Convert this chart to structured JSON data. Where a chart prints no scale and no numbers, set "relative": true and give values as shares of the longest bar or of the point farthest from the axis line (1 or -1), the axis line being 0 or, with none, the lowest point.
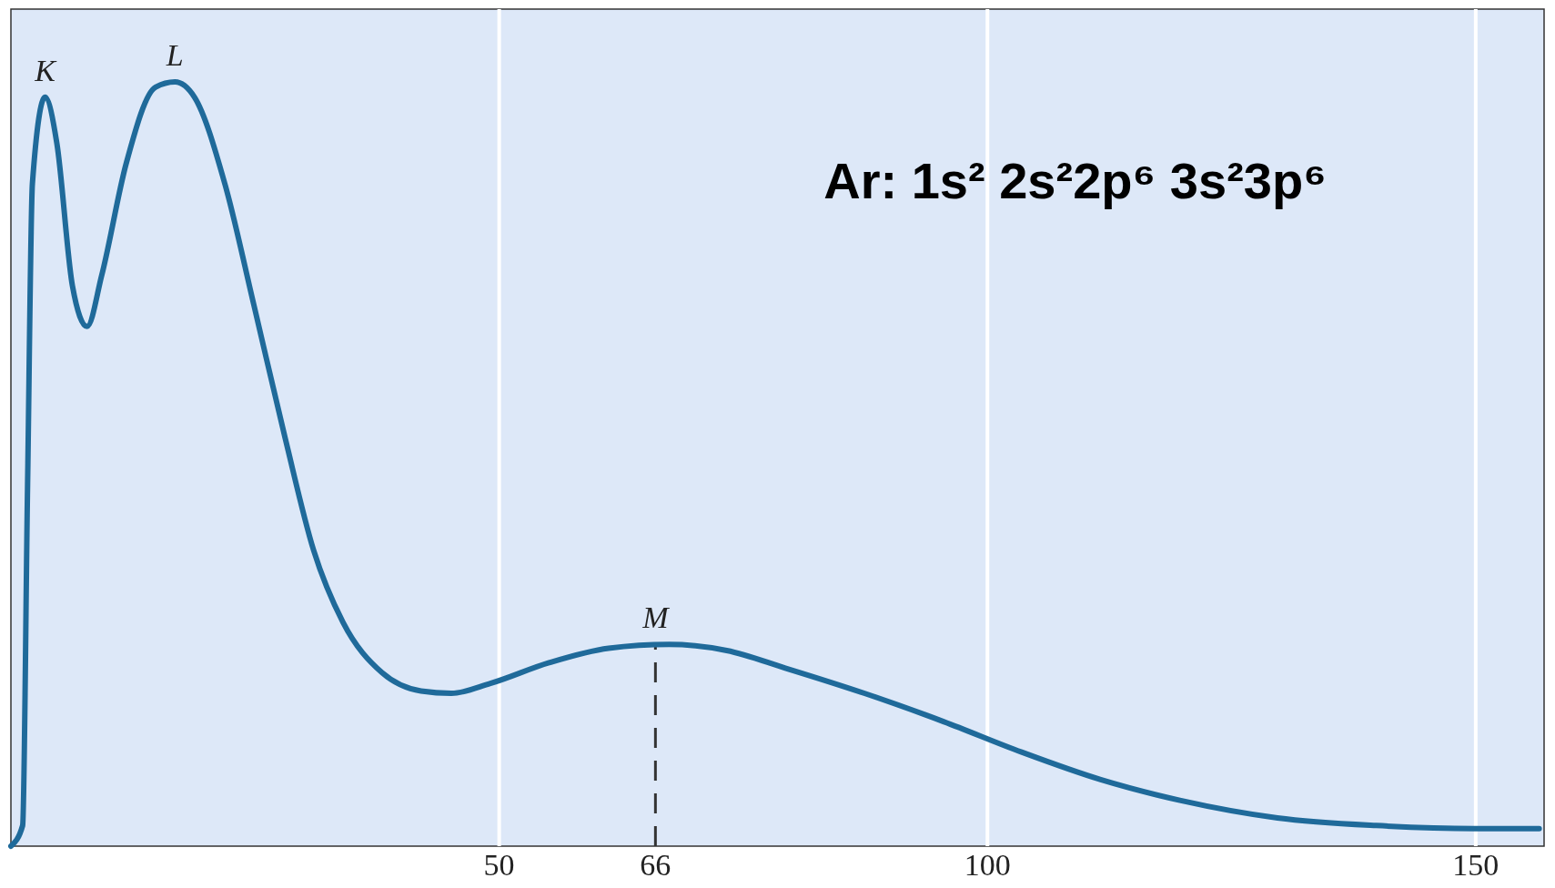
{
  "chart_data": {
    "type": "line",
    "relative": true,
    "x": [
      0,
      1.2,
      1.7,
      2.2,
      3.5,
      4.7,
      6.3,
      7.8,
      9.3,
      11.8,
      14.8,
      16.8,
      18.8,
      21.9,
      24.9,
      28.1,
      31.0,
      34.0,
      38.0,
      42.0,
      45.1,
      49.1,
      55.1,
      61.2,
      67.4,
      73.3,
      79.3,
      87.4,
      95.5,
      103.5,
      111.6,
      119.7,
      129.7,
      139.8,
      149.9,
      156.5
    ],
    "series": [
      {
        "color": "#1f6a9a",
        "values": [
          0,
          0.027,
          0.467,
          0.867,
          0.98,
          0.92,
          0.733,
          0.68,
          0.747,
          0.893,
          0.993,
          1.0,
          0.98,
          0.867,
          0.707,
          0.533,
          0.387,
          0.293,
          0.227,
          0.203,
          0.2,
          0.213,
          0.24,
          0.259,
          0.264,
          0.256,
          0.233,
          0.2,
          0.163,
          0.123,
          0.087,
          0.06,
          0.037,
          0.027,
          0.023,
          0.023
        ]
      }
    ],
    "xlim": [
      0,
      157
    ],
    "xticks": [
      50,
      66,
      100,
      150
    ],
    "grid": "x",
    "marker": "none",
    "line_style": "solid",
    "ref_lines": [
      {
        "axis": "x",
        "value": 66,
        "line_style": "dashed",
        "color": "#333333"
      }
    ],
    "annotations": [
      {
        "text": "K",
        "x": 3.5,
        "y": 0.98
      },
      {
        "text": "L",
        "x": 16.8,
        "y": 1.0
      },
      {
        "text": "M",
        "x": 66,
        "y": 0.264
      },
      "Ar: 1s² 2s²2p⁶ 3s²3p⁶"
    ]
  }
}
